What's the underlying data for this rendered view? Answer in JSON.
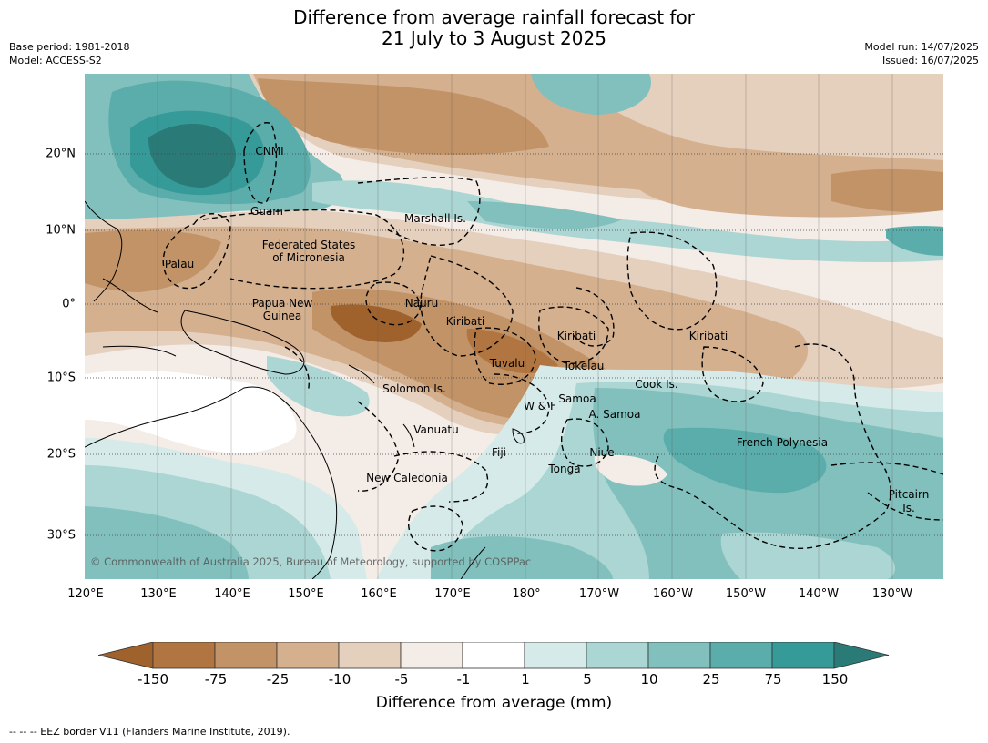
{
  "title": {
    "line1": "Difference from average rainfall forecast for",
    "line2": "21 July to 3 August 2025"
  },
  "meta_left": {
    "base_period": "Base period: 1981-2018",
    "model": "Model: ACCESS-S2"
  },
  "meta_right": {
    "model_run": "Model run: 14/07/2025",
    "issued": "Issued: 16/07/2025"
  },
  "map": {
    "lon_ticks": [
      "120°E",
      "130°E",
      "140°E",
      "150°E",
      "160°E",
      "170°E",
      "180°",
      "170°W",
      "160°W",
      "150°W",
      "140°W",
      "130°W"
    ],
    "lat_ticks": [
      "20°N",
      "10°N",
      "0°",
      "10°S",
      "20°S",
      "30°S"
    ],
    "region_labels": [
      "CNMI",
      "Guam",
      "Marshall Is.",
      "Federated States",
      "of Micronesia",
      "Palau",
      "Papua New",
      "Guinea",
      "Nauru",
      "Kiribati",
      "Kiribati",
      "Kiribati",
      "Tuvalu",
      "Tokelau",
      "Cook Is.",
      "Solomon Is.",
      "W & F",
      "Samoa",
      "A. Samoa",
      "Vanuatu",
      "Fiji",
      "Niue",
      "French Polynesia",
      "Tonga",
      "New Caledonia",
      "Pitcairn",
      "Is."
    ],
    "copyright": "© Commonwealth of Australia 2025, Bureau of Meteorology, supported by COSPPac"
  },
  "colorbar": {
    "labels": [
      "-150",
      "-75",
      "-25",
      "-10",
      "-5",
      "-1",
      "1",
      "5",
      "10",
      "25",
      "75",
      "150"
    ],
    "colors": [
      "#a0622d",
      "#b07540",
      "#c19367",
      "#d4b08f",
      "#e5cfbd",
      "#f4ece7",
      "#ffffff",
      "#d6ebe9",
      "#abd6d3",
      "#82c0be",
      "#5aadab",
      "#369a98",
      "#2a7a77"
    ],
    "title": "Difference from average (mm)"
  },
  "footnote": "--  --  -- EEZ border V11 (Flanders Marine Institute, 2019)."
}
